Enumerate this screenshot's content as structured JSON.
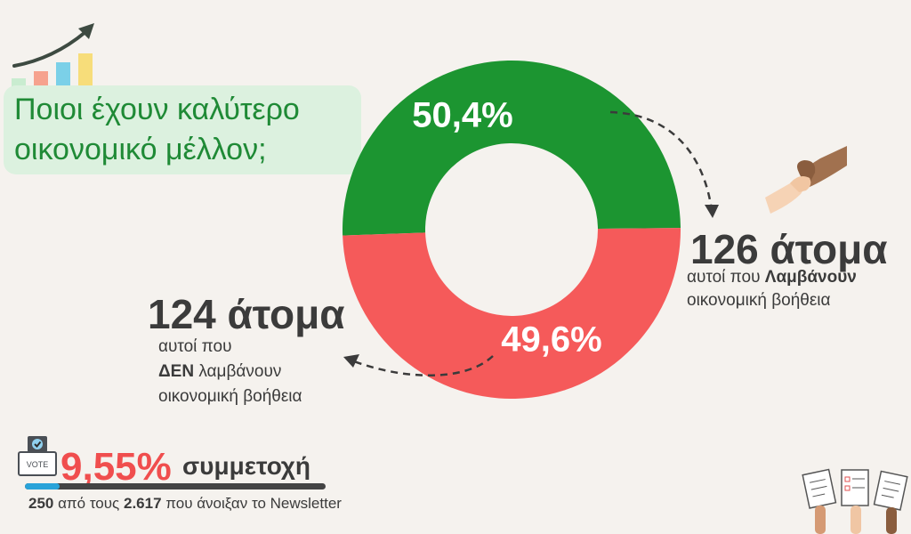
{
  "title": {
    "line1": "Ποιοι έχουν καλύτερο",
    "line2": "οικονομικό μέλλον;"
  },
  "chart_data": {
    "type": "pie",
    "title": "Ποιοι έχουν καλύτερο οικονομικό μέλλον;",
    "slices": [
      {
        "label": "αυτοί που Λαμβάνουν οικονομική βοήθεια",
        "value": 126,
        "percent": 50.4,
        "percent_label": "50,4%",
        "color": "#1c9531"
      },
      {
        "label": "αυτοί που ΔΕΝ λαμβάνουν οικονομική βοήθεια",
        "value": 124,
        "percent": 49.6,
        "percent_label": "49,6%",
        "color": "#f55a5a"
      }
    ]
  },
  "annotations": {
    "right": {
      "count": "126 άτομα",
      "sub_pre": "αυτοί που ",
      "sub_bold": "Λαμβάνουν",
      "sub_line2": "οικονομική βοήθεια"
    },
    "left": {
      "count": "124 άτομα",
      "sub_line1": "αυτοί που",
      "sub_bold": "ΔΕΝ",
      "sub_after_bold": " λαμβάνουν",
      "sub_line3": "οικονομική βοήθεια"
    }
  },
  "participation": {
    "percent_label": "9,55%",
    "percent_value": 9.55,
    "label": "συμμετοχή",
    "vote_label": "VOTE",
    "note_count": "250",
    "note_mid": " από τους ",
    "note_total": "2.617",
    "note_end": " που άνοιξαν το Newsletter"
  },
  "icons": {
    "growth": "bar-chart-growth-icon",
    "handshake": "helping-hand-icon",
    "ballot": "ballot-box-icon",
    "voters": "raised-ballots-icon"
  },
  "colors": {
    "green": "#1c9531",
    "red": "#f55a5a",
    "title_green": "#1f8a36",
    "accent_red": "#f04e4e",
    "progress_blue": "#29a3d9"
  }
}
